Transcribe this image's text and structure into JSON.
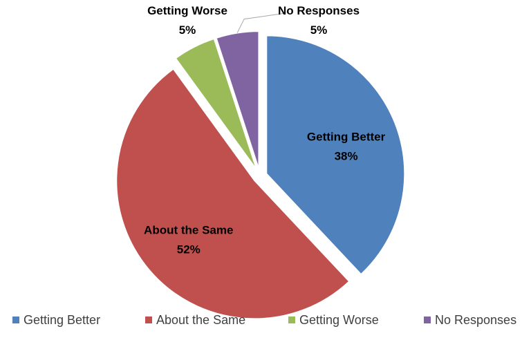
{
  "chart_data": {
    "type": "pie",
    "title": "",
    "slices": [
      {
        "name": "Getting Better",
        "value": 38,
        "label": "38%",
        "color": "#4F81BD"
      },
      {
        "name": "About the Same",
        "value": 52,
        "label": "52%",
        "color": "#C0504D"
      },
      {
        "name": "Getting Worse",
        "value": 5,
        "label": "5%",
        "color": "#9BBB59"
      },
      {
        "name": "No Responses",
        "value": 5,
        "label": "5%",
        "color": "#8064A2"
      }
    ],
    "exploded": true,
    "start_angle_deg": 0,
    "direction": "clockwise",
    "legend": {
      "position": "bottom"
    }
  }
}
